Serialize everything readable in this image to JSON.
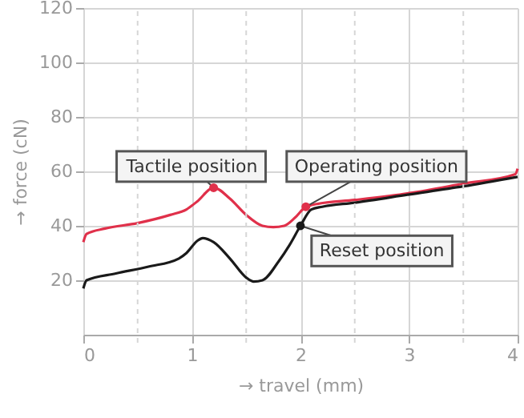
{
  "chart_data": {
    "type": "line",
    "xlabel": "→ travel (mm)",
    "ylabel": "→ force (cN)",
    "xlim": [
      0,
      4
    ],
    "ylim": [
      0,
      120
    ],
    "xticks": [
      0,
      {
        "value": 0.5,
        "label": null
      },
      1,
      {
        "value": 1.5,
        "label": null
      },
      2,
      {
        "value": 2.5,
        "label": null
      },
      3,
      {
        "value": 3.5,
        "label": null
      },
      4
    ],
    "yticks": [
      20,
      40,
      60,
      80,
      100,
      120
    ],
    "grid": true,
    "marker": "none",
    "series": [
      {
        "color": "#e0304a",
        "x": [
          0,
          0.03,
          0.2,
          0.5,
          0.8,
          0.95,
          1.05,
          1.2,
          1.35,
          1.5,
          1.65,
          1.75,
          1.85,
          1.95,
          2.05,
          2.15,
          2.5,
          3,
          3.5,
          3.98,
          4
        ],
        "values": [
          34,
          37,
          39,
          41,
          44,
          46,
          49,
          54,
          50,
          44,
          40,
          39.5,
          40,
          43,
          47,
          48,
          49.5,
          52,
          55.5,
          59,
          61
        ]
      },
      {
        "color": "#1a1a1a",
        "x": [
          0,
          0.03,
          0.3,
          0.6,
          0.88,
          0.95,
          1.05,
          1.1,
          1.2,
          1.35,
          1.5,
          1.57,
          1.65,
          1.8,
          1.9,
          2,
          2.1,
          2.2,
          2.5,
          3,
          3.5,
          4
        ],
        "values": [
          17,
          20,
          22.5,
          25,
          28,
          30,
          34.5,
          35.5,
          34,
          28,
          21,
          19.5,
          20,
          27,
          33,
          40,
          46,
          47,
          48.5,
          51.5,
          54.5,
          58
        ]
      }
    ],
    "annotations": [
      {
        "text": "Tactile position",
        "x": 1.2,
        "y": 54
      },
      {
        "text": "Operating position",
        "x": 2.05,
        "y": 47
      },
      {
        "text": "Reset position",
        "x": 2,
        "y": 40
      }
    ]
  }
}
